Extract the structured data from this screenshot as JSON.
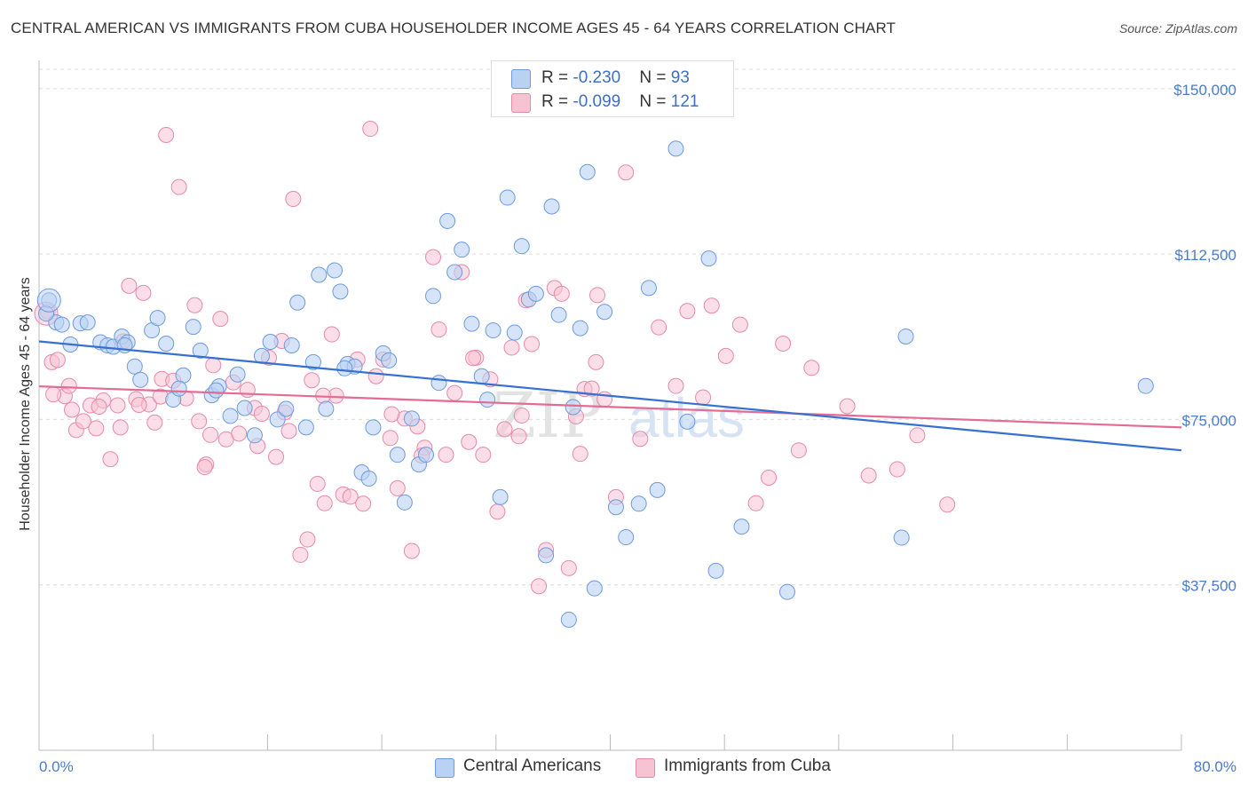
{
  "title": "CENTRAL AMERICAN VS IMMIGRANTS FROM CUBA HOUSEHOLDER INCOME AGES 45 - 64 YEARS CORRELATION CHART",
  "source": "Source: ZipAtlas.com",
  "colors": {
    "blue_fill": "#b9d2f3",
    "blue_stroke": "#6d9ade",
    "blue_line": "#3670d0",
    "pink_fill": "#f7c3d3",
    "pink_stroke": "#e68aa8",
    "pink_line": "#e36b96",
    "accent_text": "#3d6fc4"
  },
  "legend": {
    "rows": [
      {
        "r_label": "R = ",
        "r_value": "-0.230",
        "n_label": "N = ",
        "n_value": "93"
      },
      {
        "r_label": "R = ",
        "r_value": "-0.099",
        "n_label": "N = ",
        "n_value": "121"
      }
    ]
  },
  "chart_data": {
    "type": "scatter",
    "title": "CENTRAL AMERICAN VS IMMIGRANTS FROM CUBA HOUSEHOLDER INCOME AGES 45 - 64 YEARS CORRELATION CHART",
    "xlabel": "",
    "ylabel": "Householder Income Ages 45 - 64 years",
    "xlim": [
      0,
      80
    ],
    "ylim": [
      0,
      155000
    ],
    "x_edge_labels": [
      "0.0%",
      "80.0%"
    ],
    "y_ticks": [
      {
        "value": 37500,
        "label": "$37,500"
      },
      {
        "value": 75000,
        "label": "$75,000"
      },
      {
        "value": 112500,
        "label": "$112,500"
      },
      {
        "value": 150000,
        "label": "$150,000"
      }
    ],
    "grid": true,
    "legend_position": "top-center",
    "watermark": {
      "part1": "ZIP",
      "part2": "atlas"
    },
    "series": [
      {
        "name": "Central Americans",
        "trend": {
          "x": [
            0,
            80
          ],
          "y": [
            92700,
            68000
          ]
        },
        "points": [
          [
            0.7,
            102000
          ],
          [
            1.2,
            97000
          ],
          [
            1.6,
            96500
          ],
          [
            2.2,
            92000
          ],
          [
            2.9,
            96800
          ],
          [
            3.4,
            97000
          ],
          [
            4.3,
            92500
          ],
          [
            4.8,
            91800
          ],
          [
            5.2,
            91500
          ],
          [
            5.8,
            93800
          ],
          [
            6.2,
            92500
          ],
          [
            6.7,
            87000
          ],
          [
            7.1,
            84000
          ],
          [
            7.9,
            95200
          ],
          [
            8.3,
            98000
          ],
          [
            8.9,
            92200
          ],
          [
            9.4,
            79500
          ],
          [
            10.1,
            85000
          ],
          [
            10.8,
            96000
          ],
          [
            11.3,
            90600
          ],
          [
            12.1,
            80500
          ],
          [
            12.6,
            82500
          ],
          [
            13.4,
            75800
          ],
          [
            13.9,
            85200
          ],
          [
            14.4,
            77600
          ],
          [
            15.1,
            71400
          ],
          [
            15.6,
            89400
          ],
          [
            16.2,
            92600
          ],
          [
            16.7,
            75000
          ],
          [
            17.3,
            77400
          ],
          [
            17.7,
            91800
          ],
          [
            18.1,
            101500
          ],
          [
            18.7,
            73200
          ],
          [
            19.2,
            88000
          ],
          [
            19.6,
            107800
          ],
          [
            20.1,
            77400
          ],
          [
            20.7,
            108800
          ],
          [
            21.1,
            104000
          ],
          [
            21.6,
            87600
          ],
          [
            22.1,
            87000
          ],
          [
            22.6,
            63000
          ],
          [
            23.1,
            61600
          ],
          [
            23.4,
            73200
          ],
          [
            24.1,
            90000
          ],
          [
            24.5,
            88400
          ],
          [
            25.1,
            67000
          ],
          [
            25.6,
            56200
          ],
          [
            26.1,
            75200
          ],
          [
            26.6,
            64800
          ],
          [
            27.1,
            67000
          ],
          [
            27.6,
            103000
          ],
          [
            28.0,
            83300
          ],
          [
            28.6,
            120000
          ],
          [
            29.1,
            108400
          ],
          [
            29.6,
            113500
          ],
          [
            30.3,
            96700
          ],
          [
            31.0,
            84800
          ],
          [
            31.4,
            79500
          ],
          [
            31.8,
            95200
          ],
          [
            32.3,
            57400
          ],
          [
            32.8,
            125300
          ],
          [
            33.3,
            94700
          ],
          [
            33.8,
            114300
          ],
          [
            34.3,
            102200
          ],
          [
            34.8,
            103500
          ],
          [
            35.5,
            44200
          ],
          [
            35.9,
            123300
          ],
          [
            36.4,
            98700
          ],
          [
            37.1,
            29600
          ],
          [
            37.4,
            77800
          ],
          [
            37.9,
            95700
          ],
          [
            38.4,
            131100
          ],
          [
            38.9,
            36700
          ],
          [
            39.6,
            99400
          ],
          [
            40.4,
            55100
          ],
          [
            41.1,
            48300
          ],
          [
            42.0,
            55900
          ],
          [
            42.7,
            104800
          ],
          [
            43.3,
            59000
          ],
          [
            44.6,
            136400
          ],
          [
            45.4,
            74500
          ],
          [
            46.9,
            111500
          ],
          [
            47.4,
            40700
          ],
          [
            49.2,
            50700
          ],
          [
            52.4,
            35900
          ],
          [
            60.4,
            48200
          ],
          [
            60.7,
            93800
          ],
          [
            77.5,
            82600
          ],
          [
            0.5,
            99000
          ],
          [
            6.0,
            91800
          ],
          [
            9.8,
            82000
          ],
          [
            12.4,
            81600
          ],
          [
            21.4,
            86600
          ]
        ]
      },
      {
        "name": "Immigrants from Cuba",
        "trend": {
          "x": [
            0,
            80
          ],
          "y": [
            82500,
            73200
          ]
        },
        "points": [
          [
            0.6,
            99500
          ],
          [
            0.9,
            88000
          ],
          [
            1.3,
            88500
          ],
          [
            1.8,
            80300
          ],
          [
            2.3,
            77200
          ],
          [
            2.6,
            72600
          ],
          [
            3.1,
            74600
          ],
          [
            3.6,
            78200
          ],
          [
            4.0,
            73000
          ],
          [
            4.5,
            79300
          ],
          [
            5.0,
            66000
          ],
          [
            5.5,
            78200
          ],
          [
            5.9,
            92700
          ],
          [
            6.3,
            105300
          ],
          [
            6.8,
            79600
          ],
          [
            7.3,
            103700
          ],
          [
            7.7,
            78400
          ],
          [
            8.1,
            74300
          ],
          [
            8.6,
            84200
          ],
          [
            8.9,
            139500
          ],
          [
            9.4,
            83800
          ],
          [
            9.8,
            127700
          ],
          [
            10.3,
            79800
          ],
          [
            10.9,
            100900
          ],
          [
            11.2,
            74600
          ],
          [
            11.7,
            64800
          ],
          [
            12.2,
            87300
          ],
          [
            12.7,
            97800
          ],
          [
            13.1,
            70500
          ],
          [
            13.6,
            83400
          ],
          [
            14.0,
            71800
          ],
          [
            14.6,
            81700
          ],
          [
            15.1,
            77600
          ],
          [
            15.6,
            76300
          ],
          [
            16.1,
            89000
          ],
          [
            16.6,
            66500
          ],
          [
            17.0,
            92800
          ],
          [
            17.5,
            72400
          ],
          [
            17.8,
            125000
          ],
          [
            18.3,
            44300
          ],
          [
            18.8,
            47800
          ],
          [
            19.1,
            83900
          ],
          [
            19.5,
            60400
          ],
          [
            20.0,
            56000
          ],
          [
            20.5,
            94300
          ],
          [
            20.8,
            80400
          ],
          [
            21.3,
            58000
          ],
          [
            21.8,
            57500
          ],
          [
            22.3,
            88600
          ],
          [
            22.7,
            55900
          ],
          [
            23.2,
            140900
          ],
          [
            23.6,
            84800
          ],
          [
            24.1,
            88600
          ],
          [
            24.6,
            70800
          ],
          [
            25.1,
            59400
          ],
          [
            25.6,
            75200
          ],
          [
            26.1,
            45200
          ],
          [
            26.5,
            73400
          ],
          [
            27.0,
            68600
          ],
          [
            27.6,
            111800
          ],
          [
            28.0,
            95400
          ],
          [
            28.5,
            67000
          ],
          [
            29.1,
            81000
          ],
          [
            29.6,
            108400
          ],
          [
            30.1,
            69900
          ],
          [
            30.6,
            89000
          ],
          [
            31.1,
            67000
          ],
          [
            31.6,
            84100
          ],
          [
            32.1,
            54100
          ],
          [
            32.6,
            72800
          ],
          [
            33.1,
            91300
          ],
          [
            33.6,
            71200
          ],
          [
            34.1,
            102000
          ],
          [
            34.5,
            92100
          ],
          [
            35.0,
            37200
          ],
          [
            35.5,
            45400
          ],
          [
            36.1,
            104800
          ],
          [
            36.6,
            103500
          ],
          [
            37.1,
            41300
          ],
          [
            37.6,
            75700
          ],
          [
            38.2,
            81900
          ],
          [
            38.7,
            82000
          ],
          [
            39.1,
            103200
          ],
          [
            39.6,
            79600
          ],
          [
            40.4,
            57400
          ],
          [
            41.1,
            131000
          ],
          [
            42.1,
            70600
          ],
          [
            43.4,
            95900
          ],
          [
            44.6,
            82600
          ],
          [
            45.4,
            99600
          ],
          [
            46.5,
            80000
          ],
          [
            47.1,
            100800
          ],
          [
            48.1,
            89400
          ],
          [
            49.1,
            96500
          ],
          [
            50.2,
            56000
          ],
          [
            51.1,
            61800
          ],
          [
            52.1,
            92200
          ],
          [
            53.2,
            68000
          ],
          [
            54.1,
            86700
          ],
          [
            56.6,
            78000
          ],
          [
            58.1,
            62300
          ],
          [
            60.1,
            63700
          ],
          [
            61.5,
            71400
          ],
          [
            63.6,
            55700
          ],
          [
            2.1,
            82600
          ],
          [
            4.2,
            77900
          ],
          [
            7.0,
            78300
          ],
          [
            11.6,
            64200
          ],
          [
            15.3,
            69000
          ],
          [
            17.2,
            76600
          ],
          [
            19.9,
            80400
          ],
          [
            24.7,
            76200
          ],
          [
            26.8,
            66800
          ],
          [
            30.4,
            88900
          ],
          [
            33.8,
            75900
          ],
          [
            37.9,
            67200
          ],
          [
            1.0,
            80700
          ],
          [
            5.7,
            73200
          ],
          [
            8.5,
            80200
          ],
          [
            12.0,
            71500
          ],
          [
            39.0,
            88000
          ]
        ]
      }
    ]
  }
}
